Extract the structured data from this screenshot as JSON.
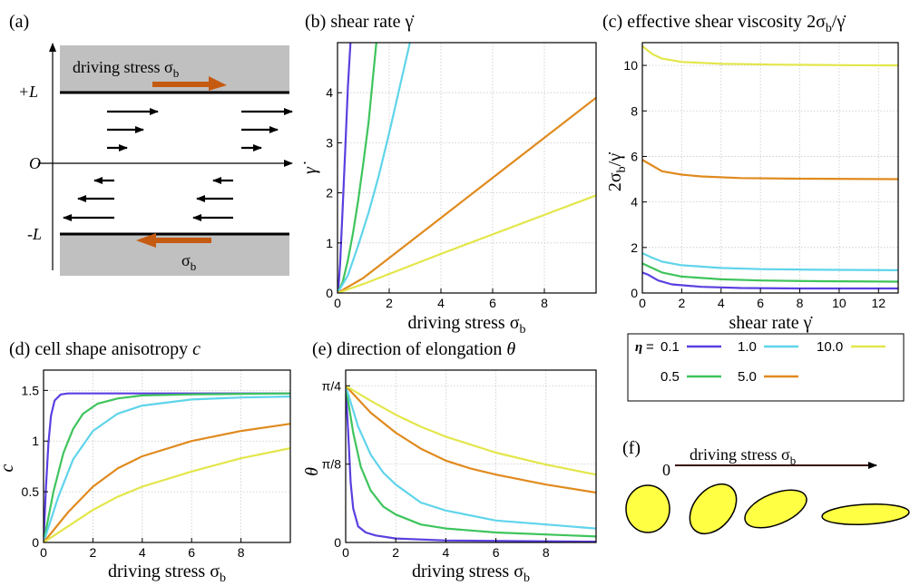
{
  "colors": {
    "eta_0_1": "#5b3fe0",
    "eta_0_5": "#3ec45c",
    "eta_1_0": "#5fd4ea",
    "eta_5_0": "#e08a1e",
    "eta_10_0": "#e3e64a",
    "plate": "#c0c0c0",
    "arrow_brown": "#c55a11",
    "cell_fill": "#ffff44"
  },
  "panel_a": {
    "label": "(a)",
    "driving_stress_label": "driving stress σ",
    "driving_stress_sub": "b",
    "bottom_stress_label": "σ",
    "bottom_stress_sub": "b",
    "y_top": "+L",
    "y_mid": "O",
    "y_bot": "-L"
  },
  "panel_f": {
    "label": "(f)",
    "zero": "0",
    "arrow_label": "driving stress σ",
    "arrow_sub": "b"
  },
  "legend": {
    "prefix": "η = ",
    "entries": [
      {
        "label": "0.1",
        "color_key": "eta_0_1"
      },
      {
        "label": "1.0",
        "color_key": "eta_1_0"
      },
      {
        "label": "10.0",
        "color_key": "eta_10_0"
      },
      {
        "label": "0.5",
        "color_key": "eta_0_5"
      },
      {
        "label": "5.0",
        "color_key": "eta_5_0"
      }
    ]
  },
  "chart_data": [
    {
      "id": "b",
      "type": "line",
      "panel_label": "(b)",
      "title": "shear rate γ̇",
      "xlabel": "driving stress σ",
      "xlabel_sub": "b",
      "ylabel": "γ̇",
      "xlim": [
        0,
        10
      ],
      "ylim": [
        0,
        5
      ],
      "xticks": [
        0,
        2,
        4,
        6,
        8
      ],
      "yticks": [
        0,
        1,
        2,
        3,
        4
      ],
      "xtick_labels": [
        "0",
        "2",
        "4",
        "6",
        "8"
      ],
      "ytick_labels": [
        "0",
        "1",
        "2",
        "3",
        "4"
      ],
      "grid": true,
      "series": [
        {
          "name": "η = 0.1",
          "color_key": "eta_0_1",
          "x": [
            0,
            0.05,
            0.1,
            0.2,
            0.3,
            0.4,
            0.5
          ],
          "y": [
            0,
            0.2,
            0.6,
            1.7,
            2.9,
            4.1,
            5.0
          ]
        },
        {
          "name": "η = 0.5",
          "color_key": "eta_0_5",
          "x": [
            0,
            0.2,
            0.4,
            0.6,
            0.8,
            1.0,
            1.2,
            1.5
          ],
          "y": [
            0,
            0.22,
            0.65,
            1.2,
            1.85,
            2.6,
            3.4,
            5.0
          ]
        },
        {
          "name": "η = 1.0",
          "color_key": "eta_1_0",
          "x": [
            0,
            0.4,
            0.8,
            1.2,
            1.6,
            2.0,
            2.4,
            2.8
          ],
          "y": [
            0,
            0.35,
            0.95,
            1.6,
            2.35,
            3.2,
            4.1,
            5.0
          ]
        },
        {
          "name": "η = 5.0",
          "color_key": "eta_5_0",
          "x": [
            0,
            1,
            2,
            4,
            6,
            8,
            10
          ],
          "y": [
            0,
            0.3,
            0.7,
            1.5,
            2.3,
            3.1,
            3.9
          ]
        },
        {
          "name": "η = 10.0",
          "color_key": "eta_10_0",
          "x": [
            0,
            1,
            2,
            4,
            6,
            8,
            10
          ],
          "y": [
            0,
            0.18,
            0.38,
            0.78,
            1.17,
            1.56,
            1.95
          ]
        }
      ]
    },
    {
      "id": "c",
      "type": "line",
      "panel_label": "(c)",
      "title": "effective shear viscosity 2σ",
      "title_sub": "b",
      "title_tail": "/γ̇",
      "xlabel": "shear rate  γ̇",
      "ylabel": "2σ",
      "ylabel_sub": "b",
      "ylabel_tail": "/γ̇",
      "xlim": [
        0,
        13
      ],
      "ylim": [
        0,
        11
      ],
      "xticks": [
        0,
        2,
        4,
        6,
        8,
        10,
        12
      ],
      "yticks": [
        0,
        2,
        4,
        6,
        8,
        10
      ],
      "xtick_labels": [
        "0",
        "2",
        "4",
        "6",
        "8",
        "10",
        "12"
      ],
      "ytick_labels": [
        "0",
        "2",
        "4",
        "6",
        "8",
        "10"
      ],
      "grid": true,
      "series": [
        {
          "name": "η = 0.1",
          "color_key": "eta_0_1",
          "x": [
            0,
            0.3,
            0.8,
            1.5,
            3,
            5,
            8,
            13
          ],
          "y": [
            0.9,
            0.8,
            0.55,
            0.38,
            0.27,
            0.22,
            0.2,
            0.2
          ]
        },
        {
          "name": "η = 0.5",
          "color_key": "eta_0_5",
          "x": [
            0,
            0.5,
            1,
            2,
            4,
            6,
            9,
            13
          ],
          "y": [
            1.3,
            1.1,
            0.9,
            0.72,
            0.6,
            0.55,
            0.52,
            0.5
          ]
        },
        {
          "name": "η = 1.0",
          "color_key": "eta_1_0",
          "x": [
            0,
            0.5,
            1,
            2,
            4,
            6,
            9,
            13
          ],
          "y": [
            1.75,
            1.55,
            1.38,
            1.22,
            1.1,
            1.05,
            1.02,
            1.0
          ]
        },
        {
          "name": "η = 5.0",
          "color_key": "eta_5_0",
          "x": [
            0,
            0.5,
            1,
            2,
            3,
            5,
            8,
            13
          ],
          "y": [
            5.85,
            5.6,
            5.35,
            5.2,
            5.12,
            5.05,
            5.02,
            5.0
          ]
        },
        {
          "name": "η = 10.0",
          "color_key": "eta_10_0",
          "x": [
            0,
            0.5,
            1,
            2,
            4,
            7,
            10,
            13
          ],
          "y": [
            10.85,
            10.5,
            10.3,
            10.15,
            10.07,
            10.03,
            10.01,
            10.0
          ]
        }
      ]
    },
    {
      "id": "d",
      "type": "line",
      "panel_label": "(d)",
      "title": "cell shape anisotropy ",
      "title_var": "c",
      "xlabel": "driving stress σ",
      "xlabel_sub": "b",
      "ylabel": "c",
      "xlim": [
        0,
        10
      ],
      "ylim": [
        0,
        1.7
      ],
      "xticks": [
        0,
        2,
        4,
        6,
        8
      ],
      "yticks": [
        0,
        0.5,
        1,
        1.5
      ],
      "xtick_labels": [
        "0",
        "2",
        "4",
        "6",
        "8"
      ],
      "ytick_labels": [
        "0",
        "0.5",
        "1",
        "1.5"
      ],
      "grid": true,
      "series": [
        {
          "name": "η = 0.1",
          "color_key": "eta_0_1",
          "x": [
            0,
            0.1,
            0.2,
            0.3,
            0.45,
            0.7,
            1,
            2,
            10
          ],
          "y": [
            0,
            0.55,
            0.98,
            1.25,
            1.4,
            1.46,
            1.47,
            1.47,
            1.47
          ]
        },
        {
          "name": "η = 0.5",
          "color_key": "eta_0_5",
          "x": [
            0,
            0.4,
            0.8,
            1.2,
            1.6,
            2.2,
            3,
            4,
            6,
            10
          ],
          "y": [
            0,
            0.5,
            0.88,
            1.12,
            1.27,
            1.37,
            1.42,
            1.45,
            1.46,
            1.47
          ]
        },
        {
          "name": "η = 1.0",
          "color_key": "eta_1_0",
          "x": [
            0,
            0.6,
            1.2,
            2,
            3,
            4,
            6,
            8,
            10
          ],
          "y": [
            0,
            0.45,
            0.82,
            1.1,
            1.27,
            1.35,
            1.41,
            1.43,
            1.44
          ]
        },
        {
          "name": "η = 5.0",
          "color_key": "eta_5_0",
          "x": [
            0,
            1,
            2,
            3,
            4,
            6,
            8,
            10
          ],
          "y": [
            0,
            0.3,
            0.55,
            0.73,
            0.85,
            1.0,
            1.1,
            1.17
          ]
        },
        {
          "name": "η = 10.0",
          "color_key": "eta_10_0",
          "x": [
            0,
            1,
            2,
            3,
            4,
            6,
            8,
            10
          ],
          "y": [
            0,
            0.16,
            0.32,
            0.45,
            0.55,
            0.7,
            0.83,
            0.93
          ]
        }
      ]
    },
    {
      "id": "e",
      "type": "line",
      "panel_label": "(e)",
      "title": "direction of elongation ",
      "title_var": "θ",
      "xlabel": "driving stress σ",
      "xlabel_sub": "b",
      "ylabel": "θ",
      "xlim": [
        0,
        10
      ],
      "ylim": [
        0,
        0.8639
      ],
      "xticks": [
        0,
        2,
        4,
        6,
        8
      ],
      "yticks": [
        0,
        0.3927,
        0.7854
      ],
      "xtick_labels": [
        "0",
        "2",
        "4",
        "6",
        "8"
      ],
      "ytick_labels": [
        "0",
        "π/8",
        "π/4"
      ],
      "grid": true,
      "series": [
        {
          "name": "η = 0.1",
          "color_key": "eta_0_1",
          "x": [
            0,
            0.1,
            0.2,
            0.3,
            0.5,
            0.8,
            1.2,
            2,
            4,
            10
          ],
          "y": [
            0.785,
            0.55,
            0.3,
            0.17,
            0.08,
            0.05,
            0.035,
            0.02,
            0.01,
            0.004
          ]
        },
        {
          "name": "η = 0.5",
          "color_key": "eta_0_5",
          "x": [
            0,
            0.3,
            0.6,
            1,
            1.5,
            2,
            3,
            4,
            6,
            10
          ],
          "y": [
            0.785,
            0.55,
            0.38,
            0.26,
            0.18,
            0.14,
            0.09,
            0.07,
            0.05,
            0.03
          ]
        },
        {
          "name": "η = 1.0",
          "color_key": "eta_1_0",
          "x": [
            0,
            0.5,
            1,
            1.5,
            2,
            3,
            4,
            6,
            8,
            10
          ],
          "y": [
            0.785,
            0.58,
            0.44,
            0.35,
            0.29,
            0.2,
            0.16,
            0.11,
            0.09,
            0.07
          ]
        },
        {
          "name": "η = 5.0",
          "color_key": "eta_5_0",
          "x": [
            0,
            1,
            2,
            3,
            4,
            5,
            6,
            8,
            10
          ],
          "y": [
            0.785,
            0.65,
            0.55,
            0.47,
            0.41,
            0.37,
            0.34,
            0.29,
            0.25
          ]
        },
        {
          "name": "η = 10.0",
          "color_key": "eta_10_0",
          "x": [
            0,
            1,
            2,
            3,
            4,
            6,
            8,
            10
          ],
          "y": [
            0.785,
            0.71,
            0.64,
            0.58,
            0.53,
            0.45,
            0.39,
            0.34
          ]
        }
      ]
    }
  ]
}
